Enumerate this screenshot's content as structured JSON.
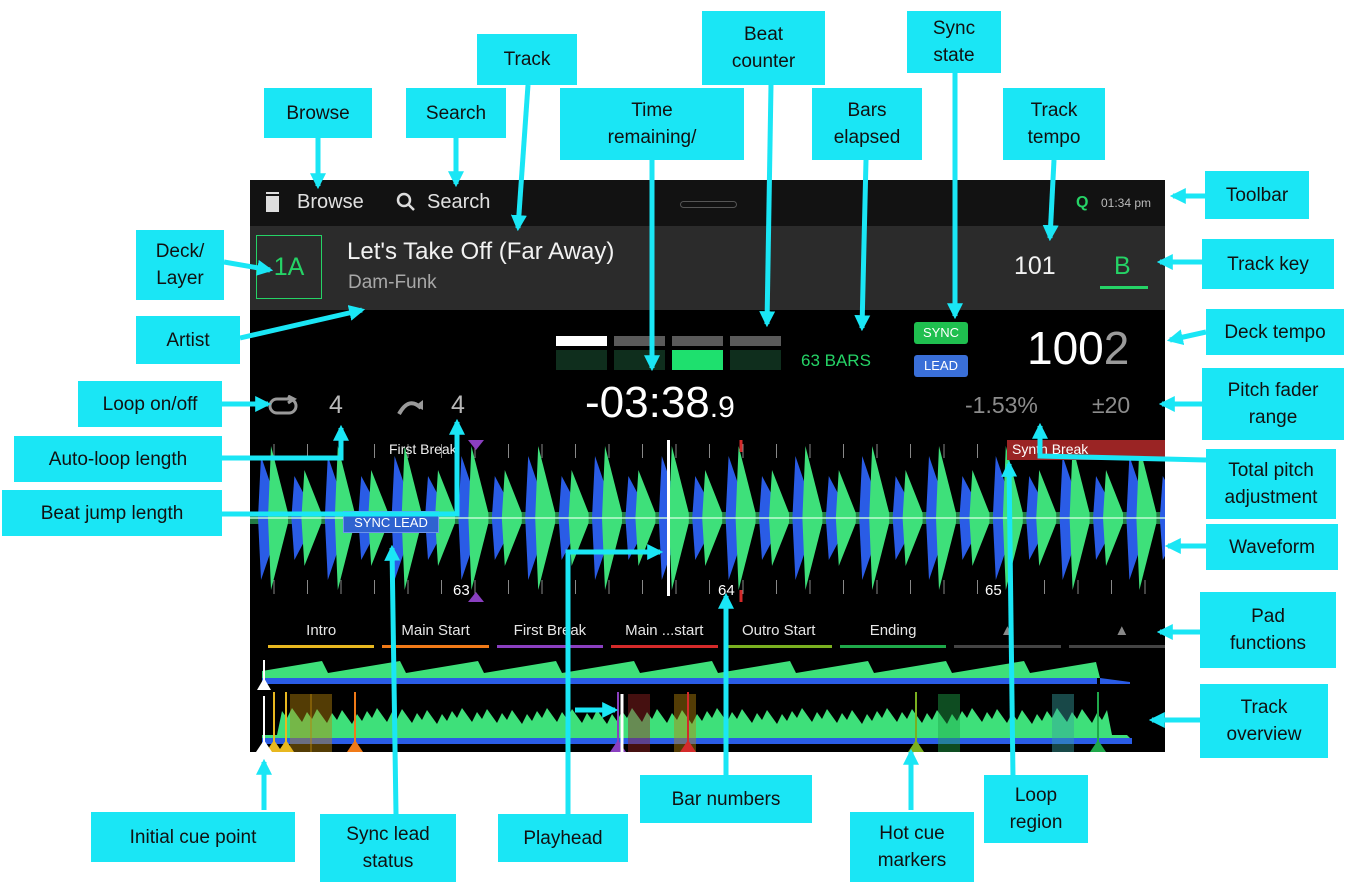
{
  "screen": {
    "toolbar": {
      "browse_label": "Browse",
      "search_label": "Search",
      "quantize_label": "Q",
      "clock": "01:34 pm",
      "browse_icon": "library-icon",
      "search_icon": "search-icon"
    },
    "deck": {
      "layer": "1A",
      "title": "Let's Take Off (Far Away)",
      "artist": "Dam-Funk",
      "track_tempo": "101",
      "key": "B",
      "sync_badge": "SYNC",
      "lead_badge": "LEAD",
      "bars_elapsed": "63 BARS",
      "tempo_main": "100",
      "tempo_decimal": "2",
      "loop_length": "4",
      "beat_jump": "4",
      "time_main": "-03:38",
      "time_tenths": ".9",
      "pitch_adjust": "-1.53%",
      "pitch_range": "±20",
      "loop_icon": "loop-icon",
      "jump_icon": "beat-jump-icon"
    },
    "waveform": {
      "cue_label_first_break": "First Break",
      "cue_label_synth_break": "Synth Break",
      "sync_lead_tag": "SYNC LEAD",
      "bar_numbers": [
        "63",
        "64",
        "65"
      ]
    },
    "pads": [
      {
        "label": "Intro",
        "color": "#e8b820"
      },
      {
        "label": "Main Start",
        "color": "#f07a18"
      },
      {
        "label": "First Break",
        "color": "#8a3fc0"
      },
      {
        "label": "Main ...start",
        "color": "#d42a2a"
      },
      {
        "label": "Outro Start",
        "color": "#7ab020"
      },
      {
        "label": "Ending",
        "color": "#1fa84a"
      },
      {
        "label": "▲",
        "color": "#444444"
      },
      {
        "label": "▲",
        "color": "#444444"
      }
    ],
    "colors": {
      "accent_green": "#25d366",
      "wave_green": "#3ee07a",
      "wave_blue": "#2a5ce6",
      "sync_blue": "#3a6fd8",
      "loop_red": "#b52a2a"
    }
  },
  "callouts": {
    "browse": "Browse",
    "search": "Search",
    "track": "Track",
    "time_remaining": "Time\nremaining/",
    "beat_counter": "Beat\ncounter",
    "bars_elapsed": "Bars\nelapsed",
    "sync_state": "Sync\nstate",
    "track_tempo": "Track\ntempo",
    "toolbar": "Toolbar",
    "deck_layer": "Deck/\nLayer",
    "track_key": "Track key",
    "artist": "Artist",
    "deck_tempo": "Deck tempo",
    "loop_onoff": "Loop on/off",
    "pitch_fader_range": "Pitch fader\nrange",
    "auto_loop_length": "Auto-loop length",
    "total_pitch_adjustment": "Total pitch\nadjustment",
    "beat_jump_length": "Beat jump length",
    "waveform": "Waveform",
    "pad_functions": "Pad\nfunctions",
    "track_overview": "Track\noverview",
    "initial_cue_point": "Initial cue point",
    "sync_lead_status": "Sync lead\nstatus",
    "playhead": "Playhead",
    "bar_numbers": "Bar numbers",
    "hot_cue_markers": "Hot cue\nmarkers",
    "loop_region": "Loop\nregion"
  }
}
